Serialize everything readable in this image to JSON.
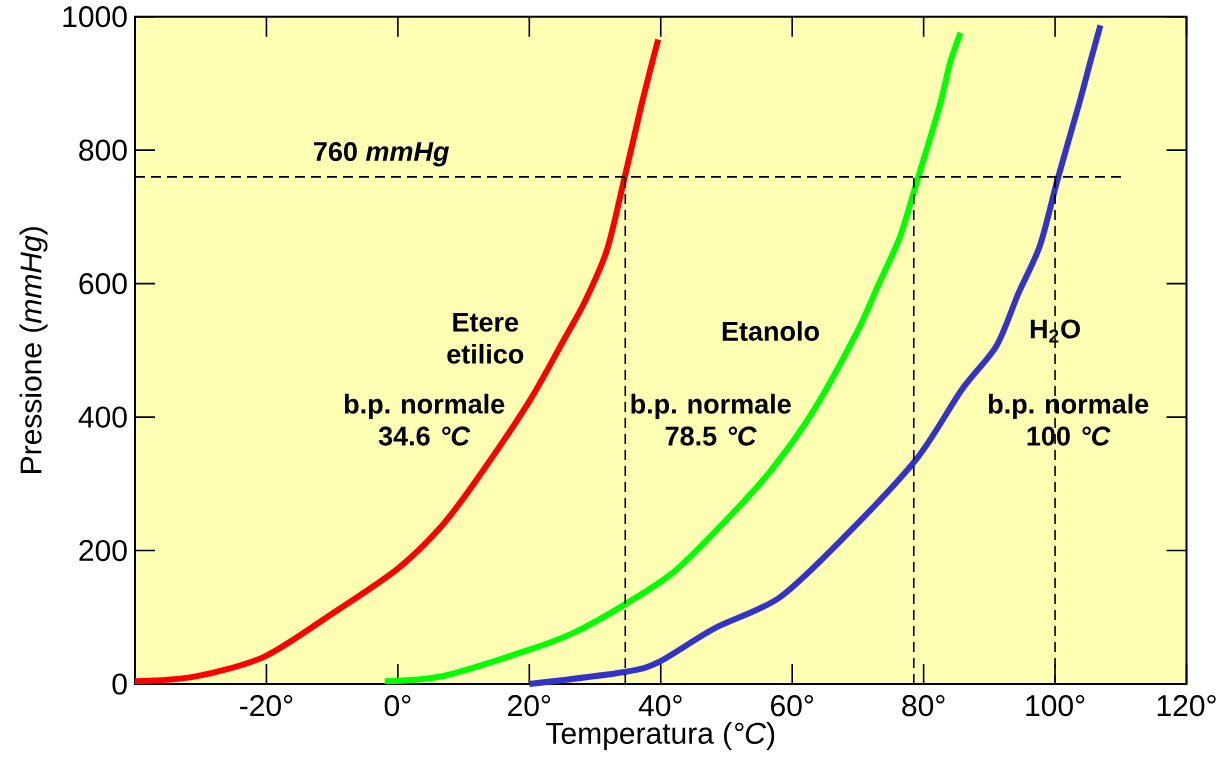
{
  "chart_data": {
    "type": "line",
    "xlabel": "Temperatura (*°C*)",
    "ylabel": "Pressione (*mmHg*)",
    "xlim": [
      -40,
      120
    ],
    "ylim": [
      0,
      1000
    ],
    "xticks": [
      {
        "value": -20,
        "label": "-20°"
      },
      {
        "value": 0,
        "label": "0°"
      },
      {
        "value": 20,
        "label": "20°"
      },
      {
        "value": 40,
        "label": "40°"
      },
      {
        "value": 60,
        "label": "60°"
      },
      {
        "value": 80,
        "label": "80°"
      },
      {
        "value": 100,
        "label": "100°"
      },
      {
        "value": 120,
        "label": "120°"
      }
    ],
    "yticks": [
      0,
      200,
      400,
      600,
      800,
      1000
    ],
    "series": [
      {
        "name": "Etere etilico",
        "color": "#ff0000",
        "x": [
          -40,
          -30.9,
          -20.3,
          -9.9,
          0,
          6.6,
          11.9,
          19.9,
          25.1,
          28.4,
          31.8,
          34.5,
          37.0,
          38.4,
          39.6
        ],
        "values": [
          4,
          11,
          41,
          106,
          173,
          236,
          305,
          422,
          513,
          572,
          650,
          759,
          865,
          920,
          966
        ]
      },
      {
        "name": "Etanolo",
        "color": "#00ff00",
        "x": [
          -2,
          6.9,
          19.9,
          26.8,
          34.5,
          42.0,
          50,
          56.6,
          63.2,
          69.8,
          73.1,
          76.4,
          79.1,
          82.4,
          84.0,
          85.6
        ],
        "values": [
          4,
          12,
          51,
          77,
          119,
          168,
          246,
          318,
          409,
          526,
          598,
          670,
          757,
          865,
          930,
          976
        ]
      },
      {
        "name": "H$_{2}$O",
        "color": "#3333cc",
        "x": [
          20,
          34.5,
          39.7,
          48.1,
          58,
          67.9,
          78.9,
          85.8,
          91.1,
          94.4,
          97.7,
          100.4,
          103.7,
          105.3,
          106.9
        ],
        "values": [
          0,
          18,
          33,
          83,
          129,
          220,
          337,
          441,
          507,
          585,
          657,
          757,
          871,
          930,
          987
        ]
      }
    ],
    "ref_lines": [
      {
        "axis": "y",
        "value": 760,
        "label": "760 *mmHg*",
        "line_style": "dashed",
        "color": "#000000"
      },
      {
        "axis": "x",
        "value": 34.6,
        "line_style": "dashed",
        "color": "#000000"
      },
      {
        "axis": "x",
        "value": 78.5,
        "line_style": "dashed",
        "color": "#000000"
      },
      {
        "axis": "x",
        "value": 100,
        "line_style": "dashed",
        "color": "#000000"
      }
    ],
    "annotations": [
      "b.p. normale 34.6 *°C*",
      "b.p. normale 78.5 *°C*",
      "b.p. normale 100 *°C*"
    ]
  }
}
